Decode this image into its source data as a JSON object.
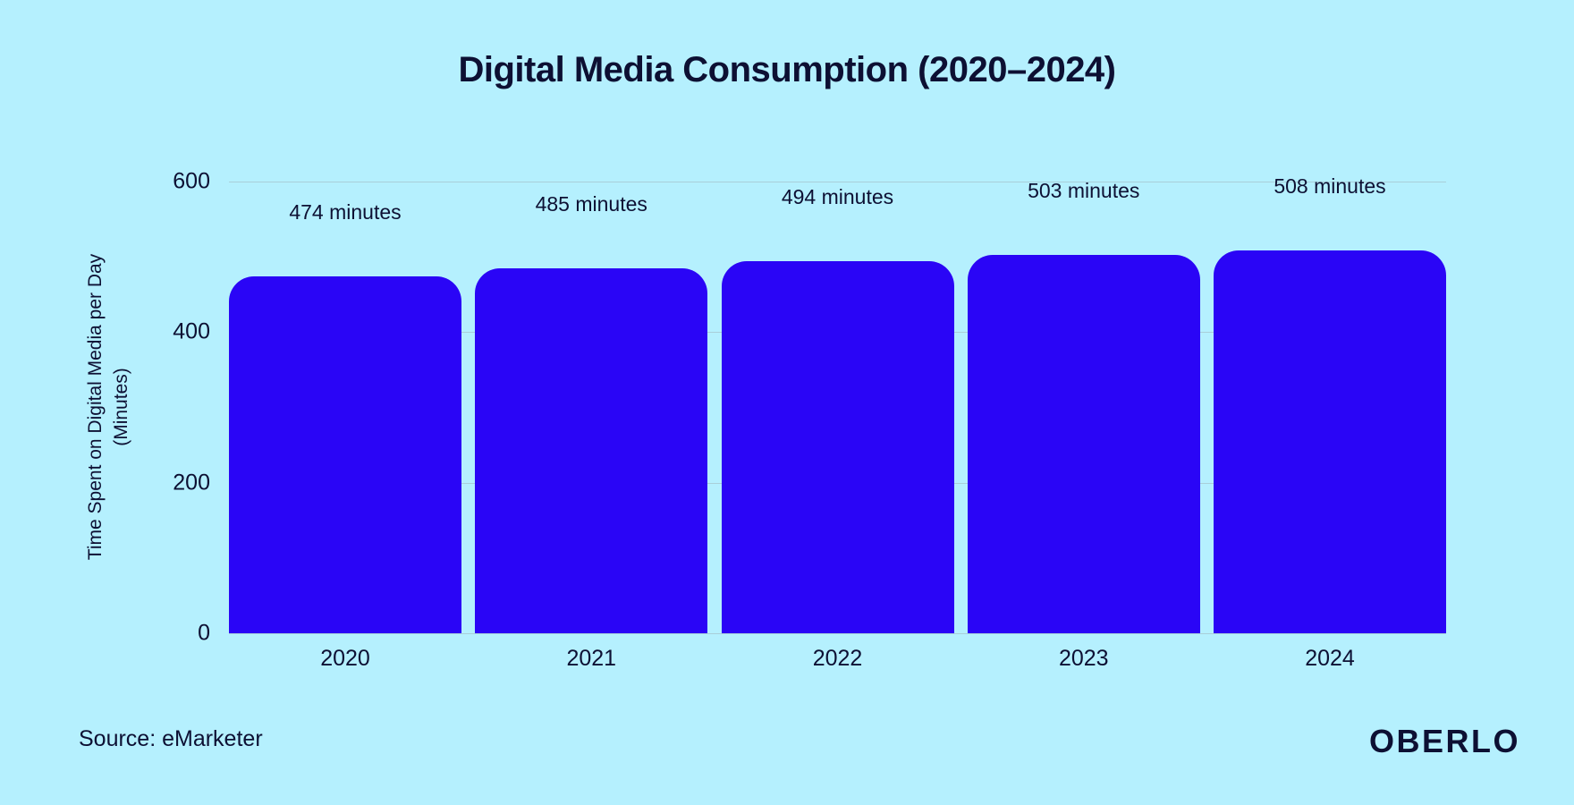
{
  "page": {
    "background": "#b5f0fe",
    "text_color": "#0d1033",
    "source_note": "Source: eMarketer",
    "brand_logo": "OBERLO"
  },
  "chart_data": {
    "type": "bar",
    "title": "Digital Media Consumption (2020–2024)",
    "categories": [
      "2020",
      "2021",
      "2022",
      "2023",
      "2024"
    ],
    "values": [
      474,
      485,
      494,
      503,
      508
    ],
    "value_labels": [
      "474 minutes",
      "485 minutes",
      "494 minutes",
      "503 minutes",
      "508 minutes"
    ],
    "xlabel": "",
    "ylabel_line1": "Time Spent on Digital Media per Day",
    "ylabel_line2": "(Minutes)",
    "yticks": [
      600,
      400,
      200,
      0
    ],
    "ylim": [
      0,
      600
    ],
    "grid": true,
    "legend": false,
    "bar_color": "#2a05f6",
    "gridline_color": "#a9cfd9"
  }
}
